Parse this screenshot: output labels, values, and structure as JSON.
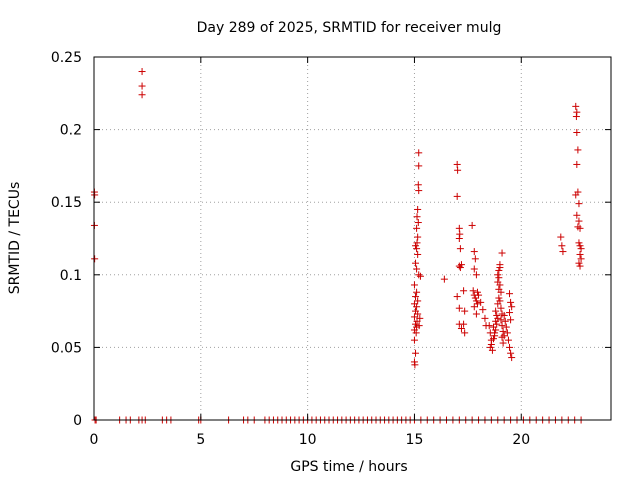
{
  "chart_data": {
    "type": "scatter",
    "title": "Day 289 of 2025, SRMTID for receiver mulg",
    "xlabel": "GPS time / hours",
    "ylabel": "SRMTID / TECUs",
    "xlim": [
      0,
      24.2
    ],
    "ylim": [
      0,
      0.25
    ],
    "x_ticks": [
      0,
      5,
      10,
      15,
      20
    ],
    "x_tick_labels": [
      "0",
      "5",
      "10",
      "15",
      "20"
    ],
    "y_ticks": [
      0,
      0.05,
      0.1,
      0.15,
      0.2,
      0.25
    ],
    "y_tick_labels": [
      "0",
      "0.05",
      "0.1",
      "0.15",
      "0.2",
      "0.25"
    ],
    "grid": true,
    "marker": "plus",
    "series": [
      {
        "name": "SRMTID",
        "color": "#cc0000",
        "points": [
          [
            0.02,
            0.157
          ],
          [
            0.03,
            0.155
          ],
          [
            0.02,
            0.134
          ],
          [
            0.03,
            0.111
          ],
          [
            2.25,
            0.24
          ],
          [
            2.25,
            0.23
          ],
          [
            2.25,
            0.224
          ],
          [
            15.0,
            0.04
          ],
          [
            15.02,
            0.038
          ],
          [
            15.05,
            0.046
          ],
          [
            15.0,
            0.055
          ],
          [
            15.08,
            0.06
          ],
          [
            15.0,
            0.062
          ],
          [
            15.1,
            0.064
          ],
          [
            15.05,
            0.066
          ],
          [
            15.12,
            0.068
          ],
          [
            15.0,
            0.071
          ],
          [
            15.15,
            0.073
          ],
          [
            15.05,
            0.075
          ],
          [
            15.1,
            0.078
          ],
          [
            15.0,
            0.08
          ],
          [
            15.15,
            0.082
          ],
          [
            15.05,
            0.085
          ],
          [
            15.1,
            0.088
          ],
          [
            15.0,
            0.093
          ],
          [
            15.2,
            0.1
          ],
          [
            15.1,
            0.104
          ],
          [
            15.05,
            0.108
          ],
          [
            15.15,
            0.114
          ],
          [
            15.1,
            0.118
          ],
          [
            15.05,
            0.12
          ],
          [
            15.12,
            0.122
          ],
          [
            15.15,
            0.126
          ],
          [
            15.1,
            0.132
          ],
          [
            15.18,
            0.136
          ],
          [
            15.12,
            0.14
          ],
          [
            15.15,
            0.145
          ],
          [
            15.2,
            0.158
          ],
          [
            15.18,
            0.162
          ],
          [
            15.2,
            0.175
          ],
          [
            15.2,
            0.184
          ],
          [
            15.22,
            0.065
          ],
          [
            15.25,
            0.07
          ],
          [
            15.28,
            0.099
          ],
          [
            16.4,
            0.097
          ],
          [
            17.0,
            0.176
          ],
          [
            17.02,
            0.172
          ],
          [
            17.0,
            0.154
          ],
          [
            17.1,
            0.132
          ],
          [
            17.12,
            0.128
          ],
          [
            17.1,
            0.125
          ],
          [
            17.15,
            0.118
          ],
          [
            17.1,
            0.106
          ],
          [
            17.2,
            0.107
          ],
          [
            17.15,
            0.105
          ],
          [
            17.0,
            0.085
          ],
          [
            17.1,
            0.077
          ],
          [
            17.3,
            0.089
          ],
          [
            17.35,
            0.075
          ],
          [
            17.1,
            0.066
          ],
          [
            17.2,
            0.063
          ],
          [
            17.3,
            0.066
          ],
          [
            17.35,
            0.06
          ],
          [
            17.7,
            0.134
          ],
          [
            17.8,
            0.116
          ],
          [
            17.85,
            0.111
          ],
          [
            17.8,
            0.104
          ],
          [
            17.9,
            0.1
          ],
          [
            17.75,
            0.089
          ],
          [
            17.8,
            0.086
          ],
          [
            17.85,
            0.084
          ],
          [
            17.9,
            0.082
          ],
          [
            17.95,
            0.08
          ],
          [
            17.8,
            0.078
          ],
          [
            17.9,
            0.073
          ],
          [
            17.95,
            0.088
          ],
          [
            18.0,
            0.086
          ],
          [
            18.1,
            0.081
          ],
          [
            18.2,
            0.076
          ],
          [
            18.3,
            0.07
          ],
          [
            18.35,
            0.065
          ],
          [
            18.5,
            0.065
          ],
          [
            18.55,
            0.06
          ],
          [
            18.6,
            0.055
          ],
          [
            18.55,
            0.05
          ],
          [
            18.65,
            0.048
          ],
          [
            18.6,
            0.052
          ],
          [
            18.7,
            0.056
          ],
          [
            18.75,
            0.06
          ],
          [
            18.7,
            0.064
          ],
          [
            18.8,
            0.068
          ],
          [
            18.85,
            0.072
          ],
          [
            18.8,
            0.075
          ],
          [
            18.75,
            0.058
          ],
          [
            18.8,
            0.062
          ],
          [
            18.85,
            0.066
          ],
          [
            18.9,
            0.07
          ],
          [
            18.9,
            0.08
          ],
          [
            18.95,
            0.084
          ],
          [
            18.95,
            0.09
          ],
          [
            18.9,
            0.095
          ],
          [
            18.9,
            0.1
          ],
          [
            18.95,
            0.103
          ],
          [
            19.0,
            0.105
          ],
          [
            18.95,
            0.098
          ],
          [
            19.0,
            0.093
          ],
          [
            19.05,
            0.088
          ],
          [
            19.0,
            0.082
          ],
          [
            19.05,
            0.077
          ],
          [
            19.1,
            0.073
          ],
          [
            19.05,
            0.069
          ],
          [
            19.1,
            0.065
          ],
          [
            19.15,
            0.061
          ],
          [
            19.1,
            0.057
          ],
          [
            19.15,
            0.053
          ],
          [
            19.2,
            0.058
          ],
          [
            19.1,
            0.115
          ],
          [
            19.0,
            0.107
          ],
          [
            19.2,
            0.072
          ],
          [
            19.25,
            0.068
          ],
          [
            19.3,
            0.064
          ],
          [
            19.35,
            0.06
          ],
          [
            19.4,
            0.055
          ],
          [
            19.45,
            0.05
          ],
          [
            19.5,
            0.046
          ],
          [
            19.55,
            0.043
          ],
          [
            19.45,
            0.087
          ],
          [
            19.5,
            0.081
          ],
          [
            19.55,
            0.078
          ],
          [
            19.45,
            0.074
          ],
          [
            19.5,
            0.069
          ],
          [
            21.85,
            0.126
          ],
          [
            21.9,
            0.12
          ],
          [
            21.95,
            0.116
          ],
          [
            22.55,
            0.216
          ],
          [
            22.6,
            0.212
          ],
          [
            22.58,
            0.209
          ],
          [
            22.6,
            0.198
          ],
          [
            22.65,
            0.186
          ],
          [
            22.6,
            0.176
          ],
          [
            22.65,
            0.157
          ],
          [
            22.55,
            0.155
          ],
          [
            22.7,
            0.149
          ],
          [
            22.6,
            0.141
          ],
          [
            22.7,
            0.137
          ],
          [
            22.65,
            0.133
          ],
          [
            22.75,
            0.132
          ],
          [
            22.7,
            0.122
          ],
          [
            22.75,
            0.12
          ],
          [
            22.8,
            0.118
          ],
          [
            22.75,
            0.114
          ],
          [
            22.8,
            0.111
          ],
          [
            22.7,
            0.108
          ],
          [
            22.75,
            0.106
          ]
        ],
        "zero_x": [
          0.05,
          0.1,
          1.2,
          1.5,
          1.7,
          2.1,
          2.25,
          2.4,
          3.2,
          3.4,
          3.6,
          4.9,
          5.0,
          6.3,
          7.0,
          7.2,
          7.5,
          8.0,
          8.2,
          8.4,
          8.6,
          8.8,
          9.0,
          9.2,
          9.4,
          9.6,
          9.8,
          10.0,
          10.2,
          10.4,
          10.6,
          10.8,
          11.0,
          11.2,
          11.4,
          11.6,
          11.8,
          12.0,
          12.2,
          12.4,
          12.6,
          12.8,
          13.0,
          13.2,
          13.4,
          13.6,
          13.8,
          14.0,
          14.2,
          14.4,
          14.6,
          14.8,
          15.0,
          15.3,
          15.6,
          15.9,
          16.2,
          16.5,
          16.8,
          17.1,
          17.4,
          17.7,
          18.0,
          18.3,
          18.6,
          18.9,
          19.2,
          19.5,
          19.8,
          20.1,
          20.4,
          20.7,
          21.0,
          21.3,
          21.6,
          21.9,
          22.2,
          22.5,
          22.8
        ]
      }
    ]
  }
}
